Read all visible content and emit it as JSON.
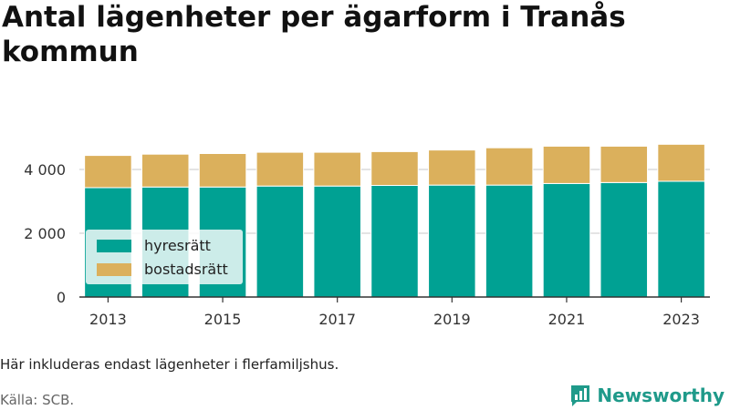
{
  "title": "Antal lägenheter per ägarform i Tranås kommun",
  "note": "Här inkluderas endast lägenheter i flerfamiljshus.",
  "source": "Källa: SCB.",
  "brand": {
    "name": "Newsworthy",
    "icon": "bar-chart-logo-icon",
    "color": "#1f9a8a"
  },
  "chart_data": {
    "type": "bar",
    "stacked": true,
    "categories": [
      "2013",
      "2014",
      "2015",
      "2016",
      "2017",
      "2018",
      "2019",
      "2020",
      "2021",
      "2022",
      "2023"
    ],
    "series": [
      {
        "name": "hyresrätt",
        "color": "#00a193",
        "values": [
          3430,
          3450,
          3450,
          3480,
          3480,
          3500,
          3510,
          3510,
          3560,
          3590,
          3630
        ]
      },
      {
        "name": "bostadsrätt",
        "color": "#dbb05c",
        "values": [
          1010,
          1030,
          1050,
          1060,
          1060,
          1060,
          1100,
          1170,
          1170,
          1140,
          1160
        ]
      }
    ],
    "ylim": [
      0,
      5200
    ],
    "yticks": [
      0,
      2000,
      4000
    ],
    "ytick_labels": [
      "0",
      "2 000",
      "4 000"
    ],
    "xtick_labels": [
      "2013",
      "2015",
      "2017",
      "2019",
      "2021",
      "2023"
    ],
    "xlabel": "",
    "ylabel": "",
    "grid": true,
    "legend_position": "bottom-left"
  }
}
